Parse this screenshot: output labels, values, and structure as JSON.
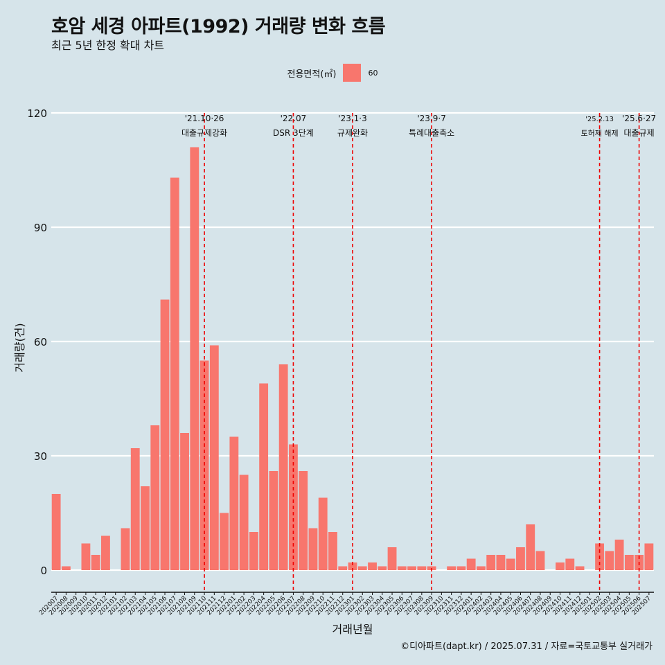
{
  "title": "호암 세경 아파트(1992) 거래량 변화 흐름",
  "subtitle": "최근 5년 한정 확대 차트",
  "legend": {
    "title": "전용면적(㎡)",
    "items": [
      {
        "label": "60",
        "color": "#f8766d"
      }
    ]
  },
  "caption": "©디아파트(dapt.kr) / 2025.07.31 / 자료=국토교통부 실거래가",
  "chart_data": {
    "type": "bar",
    "xlabel": "거래년월",
    "ylabel": "거래량(건)",
    "ylim": [
      0,
      120
    ],
    "yticks": [
      0,
      30,
      60,
      90,
      120
    ],
    "grid": true,
    "legend_position": "top",
    "bar_color": "#f8766d",
    "categories": [
      "202007",
      "202008",
      "202009",
      "202010",
      "202011",
      "202012",
      "202101",
      "202102",
      "202103",
      "202104",
      "202105",
      "202106",
      "202107",
      "202108",
      "202109",
      "202110",
      "202111",
      "202112",
      "202201",
      "202202",
      "202203",
      "202204",
      "202205",
      "202206",
      "202207",
      "202208",
      "202209",
      "202210",
      "202211",
      "202212",
      "202301",
      "202302",
      "202303",
      "202304",
      "202305",
      "202306",
      "202307",
      "202308",
      "202309",
      "202310",
      "202311",
      "202312",
      "202401",
      "202402",
      "202403",
      "202404",
      "202405",
      "202406",
      "202407",
      "202408",
      "202409",
      "202410",
      "202411",
      "202412",
      "202501",
      "202502",
      "202503",
      "202504",
      "202505",
      "202506",
      "202507"
    ],
    "series": [
      {
        "values": [
          20,
          1,
          0,
          7,
          4,
          9,
          0,
          11,
          32,
          22,
          38,
          71,
          103,
          36,
          111,
          55,
          59,
          15,
          35,
          25,
          10,
          49,
          26,
          54,
          33,
          26,
          11,
          19,
          10,
          1,
          2,
          1,
          2,
          1,
          6,
          1,
          1,
          1,
          1,
          0,
          1,
          1,
          3,
          1,
          4,
          4,
          3,
          6,
          12,
          5,
          0,
          2,
          3,
          1,
          0,
          7,
          5,
          8,
          4,
          4,
          7
        ]
      }
    ],
    "annotations": [
      {
        "x": "202110",
        "date": "'21.10·26",
        "text": "대출규제강화",
        "color": "#ee0000"
      },
      {
        "x": "202207",
        "date": "'22.07",
        "text": "DSR 3단계",
        "color": "#ee0000"
      },
      {
        "x": "202301",
        "date": "'23.1·3",
        "text": "규제완화",
        "color": "#ee0000"
      },
      {
        "x": "202309",
        "date": "'23.9·7",
        "text": "특례대출축소",
        "color": "#ee0000"
      },
      {
        "x": "202502",
        "date": "'25.2.13",
        "text": "토허제 해제",
        "color": "#ee0000"
      },
      {
        "x": "202506",
        "date": "'25.6·27",
        "text": "대출규제",
        "color": "#ee0000"
      }
    ]
  }
}
